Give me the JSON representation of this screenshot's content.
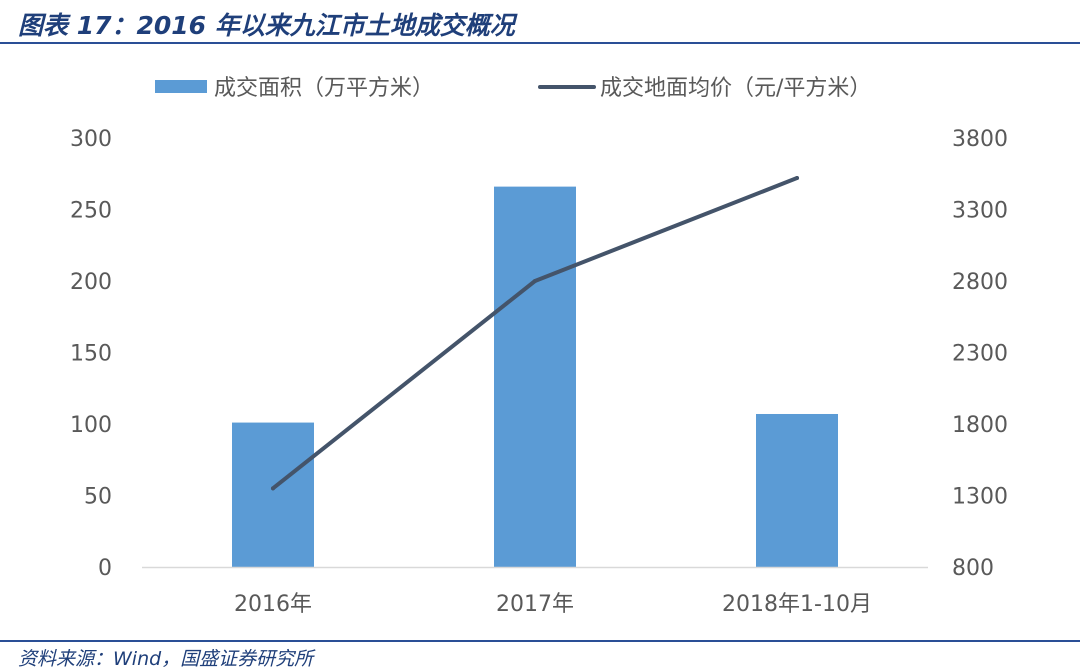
{
  "figure": {
    "title": "图表 17：2016 年以来九江市土地成交概况",
    "source": "资料来源：Wind，国盛证券研究所"
  },
  "colors": {
    "bar": "#5b9bd5",
    "line": "#44546a",
    "rule": "#2a4f96",
    "title": "#1f3f7a"
  },
  "chart_data": {
    "type": "bar",
    "categories": [
      "2016年",
      "2017年",
      "2018年1-10月"
    ],
    "series": [
      {
        "name": "成交面积（万平方米）",
        "type": "bar",
        "axis": "left",
        "values": [
          101,
          266,
          107
        ]
      },
      {
        "name": "成交地面均价（元/平方米）",
        "type": "line",
        "axis": "right",
        "values": [
          1350,
          2800,
          3520
        ]
      }
    ],
    "y_left": {
      "range": [
        0,
        300
      ],
      "ticks": [
        "0",
        "50",
        "100",
        "150",
        "200",
        "250",
        "300"
      ]
    },
    "y_right": {
      "range": [
        800,
        3800
      ],
      "ticks": [
        "800",
        "1300",
        "1800",
        "2300",
        "2800",
        "3300",
        "3800"
      ]
    },
    "grid": false,
    "legend_position": "top"
  }
}
